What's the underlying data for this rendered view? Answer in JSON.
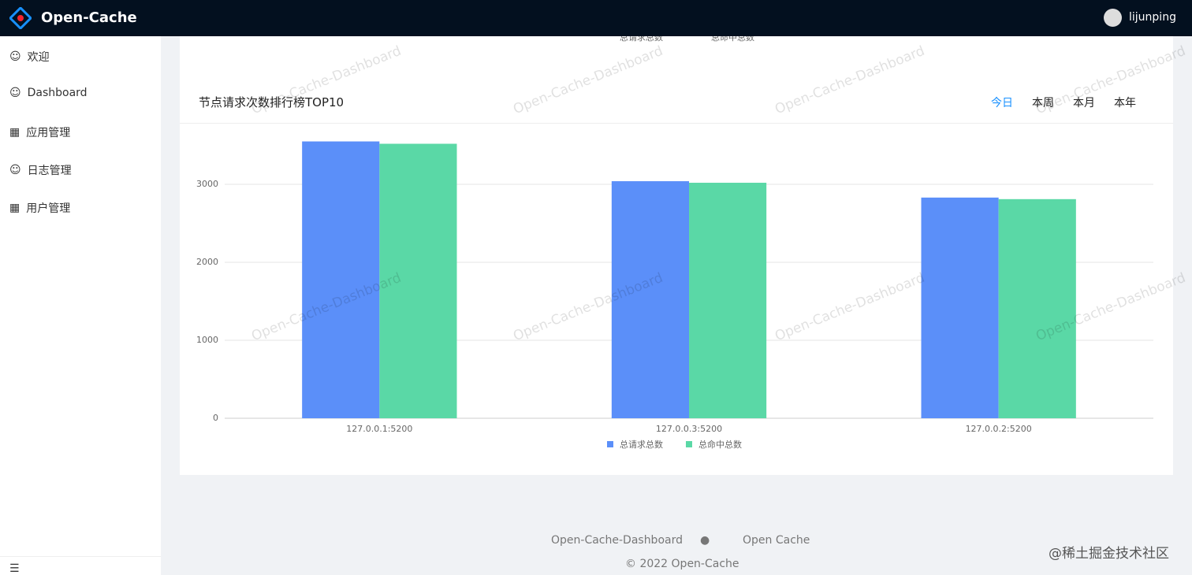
{
  "header": {
    "logo": "Open-Cache",
    "user": "lijunping"
  },
  "sidebar": {
    "items": [
      "欢迎",
      "Dashboard",
      "应用管理",
      "日志管理",
      "用户管理"
    ]
  },
  "top_legend": [
    "总请求总数",
    "总命中总数"
  ],
  "card": {
    "title": "节点请求次数排行榜TOP10",
    "tabs": [
      "今日",
      "本周",
      "本月",
      "本年"
    ]
  },
  "chart_data": {
    "type": "bar",
    "categories": [
      "127.0.0.1:5200",
      "127.0.0.3:5200",
      "127.0.0.2:5200"
    ],
    "series": [
      {
        "name": "总请求总数",
        "color": "#5b8ff9",
        "values": [
          3550,
          3040,
          2830
        ]
      },
      {
        "name": "总命中总数",
        "color": "#5ad8a6",
        "values": [
          3520,
          3020,
          2810
        ]
      }
    ],
    "ylim": [
      0,
      3600
    ],
    "yticks": [
      0,
      1000,
      2000,
      3000
    ],
    "grid": true
  },
  "watermark": "Open-Cache-Dashboard",
  "footer": {
    "links": [
      "Open-Cache-Dashboard",
      "Open Cache"
    ],
    "copyright": "2022 Open-Cache"
  },
  "corner": "@稀土掘金技术社区"
}
